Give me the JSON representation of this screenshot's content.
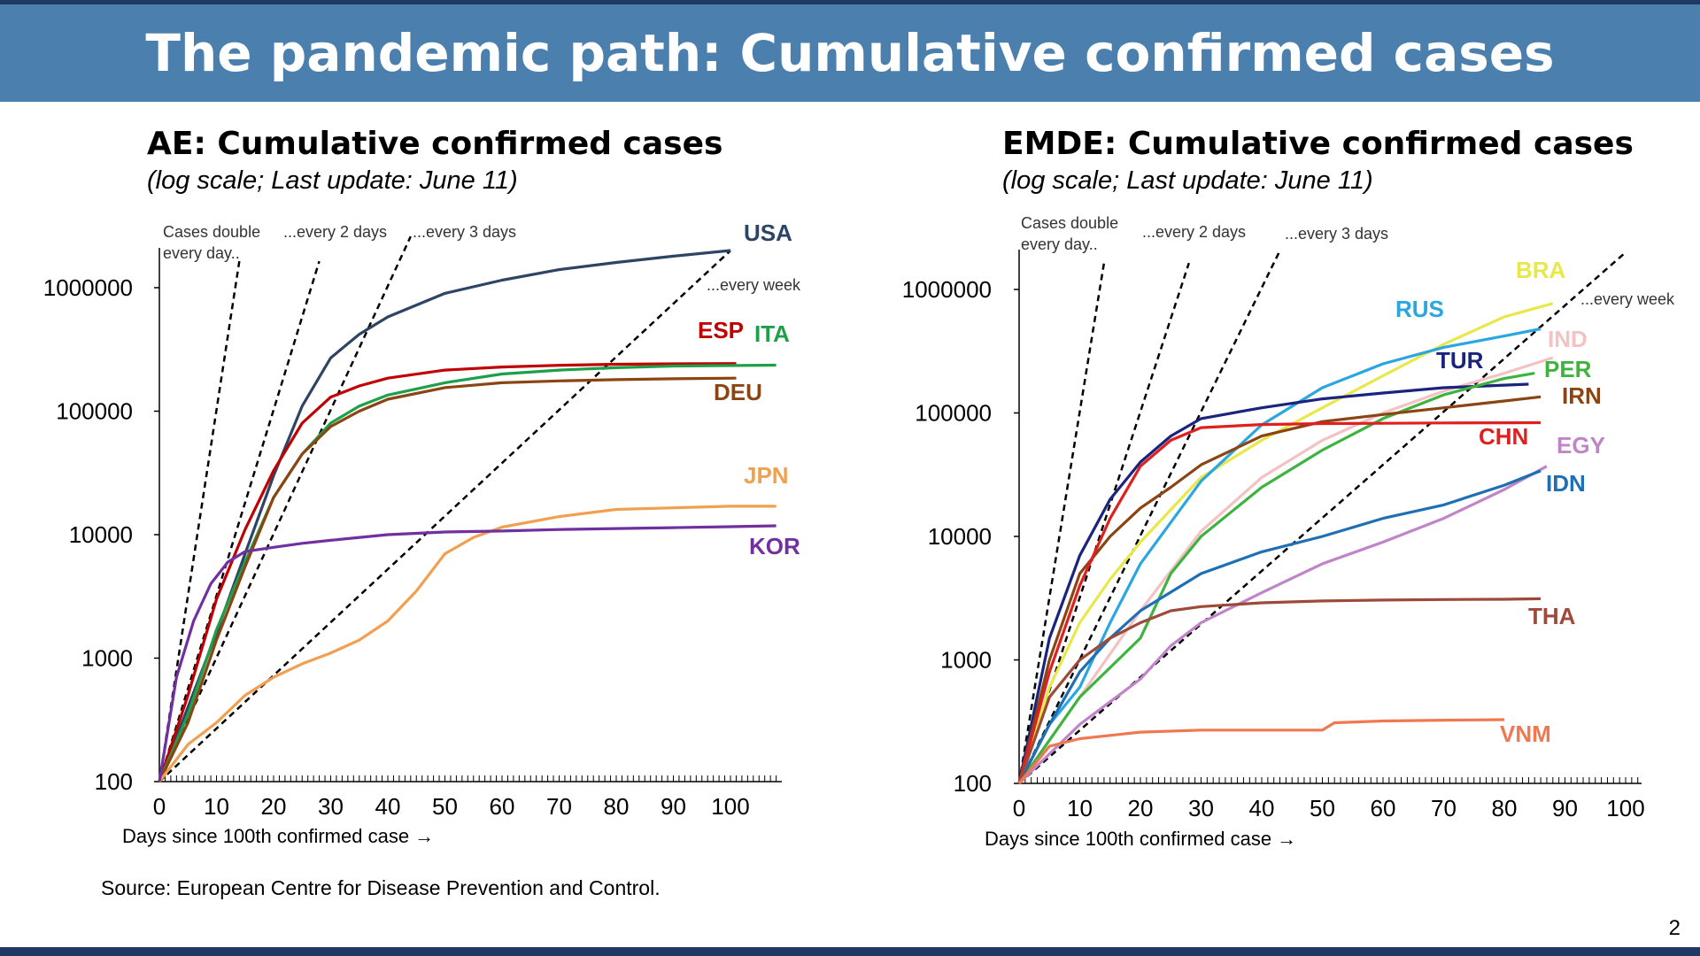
{
  "banner": {
    "title": "The pandemic path: Cumulative confirmed cases"
  },
  "page_number": "2",
  "source": "Source: European Centre for Disease Prevention and Control.",
  "colors": {
    "banner": "#4a7fae",
    "dark_bar": "#1f3864"
  },
  "chart_data": [
    {
      "type": "line",
      "title": "AE: Cumulative confirmed cases",
      "subtitle": "(log scale; Last update: June 11)",
      "xlabel": "Days since 100th confirmed case →",
      "ylabel": "",
      "log_y": true,
      "xlim": [
        0,
        108
      ],
      "ylim": [
        100,
        3000000
      ],
      "xticks": [
        0,
        10,
        20,
        30,
        40,
        50,
        60,
        70,
        80,
        90,
        100
      ],
      "yticks": [
        100,
        1000,
        10000,
        100000,
        1000000
      ],
      "ytick_labels": [
        "100",
        "1000",
        "10000",
        "100000",
        "1000000"
      ],
      "grid": false,
      "reference_lines": [
        {
          "label": "Cases double every day..",
          "days": 1,
          "x": [
            0,
            14
          ]
        },
        {
          "label": "...every 2 days",
          "days": 2,
          "x": [
            0,
            28
          ]
        },
        {
          "label": "...every 3 days",
          "days": 3,
          "x": [
            0,
            44
          ]
        },
        {
          "label": "...every week",
          "days": 7,
          "x": [
            0,
            100
          ]
        }
      ],
      "series": [
        {
          "name": "USA",
          "color": "#2e4464",
          "x": [
            0,
            5,
            10,
            15,
            20,
            25,
            30,
            35,
            40,
            50,
            60,
            70,
            80,
            90,
            100
          ],
          "y": [
            100,
            400,
            1600,
            7000,
            30000,
            110000,
            270000,
            420000,
            580000,
            900000,
            1150000,
            1400000,
            1600000,
            1800000,
            2000000
          ]
        },
        {
          "name": "ESP",
          "color": "#c00000",
          "x": [
            0,
            5,
            10,
            15,
            20,
            25,
            30,
            35,
            40,
            50,
            60,
            70,
            80,
            90,
            101
          ],
          "y": [
            100,
            500,
            3000,
            11000,
            33000,
            80000,
            130000,
            160000,
            185000,
            215000,
            228000,
            235000,
            240000,
            242000,
            243000
          ]
        },
        {
          "name": "ITA",
          "color": "#1ea04a",
          "x": [
            0,
            5,
            10,
            15,
            20,
            25,
            30,
            35,
            40,
            50,
            60,
            70,
            80,
            90,
            108
          ],
          "y": [
            100,
            350,
            1700,
            6000,
            20000,
            45000,
            80000,
            110000,
            135000,
            170000,
            200000,
            215000,
            225000,
            232000,
            236000
          ]
        },
        {
          "name": "DEU",
          "color": "#8b4513",
          "x": [
            0,
            5,
            10,
            15,
            20,
            25,
            30,
            35,
            40,
            50,
            60,
            70,
            80,
            90,
            101
          ],
          "y": [
            100,
            300,
            1400,
            5500,
            20000,
            45000,
            75000,
            100000,
            125000,
            155000,
            170000,
            176000,
            180000,
            183000,
            185000
          ]
        },
        {
          "name": "JPN",
          "color": "#f0a050",
          "x": [
            0,
            5,
            10,
            15,
            20,
            25,
            30,
            35,
            40,
            45,
            50,
            55,
            60,
            70,
            80,
            90,
            100,
            108
          ],
          "y": [
            100,
            200,
            300,
            500,
            700,
            900,
            1100,
            1400,
            2000,
            3500,
            7000,
            9500,
            11500,
            14000,
            16000,
            16500,
            17000,
            17000
          ]
        },
        {
          "name": "KOR",
          "color": "#7030a0",
          "x": [
            0,
            3,
            6,
            9,
            12,
            15,
            20,
            25,
            30,
            40,
            50,
            60,
            70,
            80,
            90,
            100,
            108
          ],
          "y": [
            100,
            700,
            2000,
            4000,
            6000,
            7300,
            7900,
            8500,
            9000,
            10000,
            10500,
            10700,
            11000,
            11200,
            11400,
            11600,
            11800
          ]
        }
      ],
      "series_labels": [
        "USA",
        "ESP",
        "ITA",
        "DEU",
        "JPN",
        "KOR"
      ]
    },
    {
      "type": "line",
      "title": "EMDE: Cumulative confirmed cases",
      "subtitle": "(log scale; Last update: June 11)",
      "xlabel": "Days since 100th confirmed case →",
      "ylabel": "",
      "log_y": true,
      "xlim": [
        0,
        102
      ],
      "ylim": [
        100,
        3000000
      ],
      "xticks": [
        0,
        10,
        20,
        30,
        40,
        50,
        60,
        70,
        80,
        90,
        100
      ],
      "yticks": [
        100,
        1000,
        10000,
        100000,
        1000000
      ],
      "ytick_labels": [
        "100",
        "1000",
        "10000",
        "100000",
        "1000000"
      ],
      "grid": false,
      "reference_lines": [
        {
          "label": "Cases double every day..",
          "days": 1,
          "x": [
            0,
            14
          ]
        },
        {
          "label": "...every 2 days",
          "days": 2,
          "x": [
            0,
            28
          ]
        },
        {
          "label": "...every 3 days",
          "days": 3,
          "x": [
            0,
            43
          ]
        },
        {
          "label": "...every week",
          "days": 7,
          "x": [
            0,
            100
          ]
        }
      ],
      "series": [
        {
          "name": "BRA",
          "color": "#e8e84a",
          "x": [
            0,
            5,
            10,
            15,
            20,
            30,
            40,
            50,
            60,
            70,
            80,
            88
          ],
          "y": [
            100,
            600,
            2000,
            4500,
            9000,
            30000,
            60000,
            110000,
            200000,
            360000,
            600000,
            770000
          ]
        },
        {
          "name": "RUS",
          "color": "#2aa6e0",
          "x": [
            0,
            5,
            10,
            15,
            20,
            30,
            40,
            50,
            60,
            70,
            80,
            86
          ],
          "y": [
            100,
            300,
            600,
            2000,
            6000,
            28000,
            80000,
            160000,
            250000,
            340000,
            420000,
            480000
          ]
        },
        {
          "name": "IND",
          "color": "#f4c2c2",
          "x": [
            0,
            10,
            20,
            30,
            40,
            50,
            60,
            70,
            80,
            88
          ],
          "y": [
            100,
            500,
            2500,
            11000,
            30000,
            60000,
            100000,
            150000,
            210000,
            280000
          ]
        },
        {
          "name": "TUR",
          "color": "#1a237e",
          "x": [
            0,
            5,
            10,
            15,
            20,
            25,
            30,
            40,
            50,
            60,
            70,
            80,
            84
          ],
          "y": [
            100,
            1500,
            7000,
            20000,
            40000,
            65000,
            90000,
            110000,
            130000,
            145000,
            160000,
            168000,
            171000
          ]
        },
        {
          "name": "PER",
          "color": "#3fb33f",
          "x": [
            0,
            10,
            20,
            25,
            30,
            40,
            50,
            60,
            70,
            80,
            85
          ],
          "y": [
            100,
            500,
            1500,
            5000,
            10000,
            25000,
            50000,
            90000,
            140000,
            190000,
            210000
          ]
        },
        {
          "name": "IRN",
          "color": "#8b4513",
          "x": [
            0,
            5,
            10,
            15,
            20,
            25,
            30,
            40,
            50,
            60,
            70,
            80,
            86
          ],
          "y": [
            100,
            1000,
            5000,
            10000,
            17000,
            25000,
            38000,
            65000,
            85000,
            97000,
            110000,
            125000,
            135000
          ]
        },
        {
          "name": "CHN",
          "color": "#e02020",
          "x": [
            0,
            5,
            10,
            15,
            20,
            25,
            30,
            40,
            50,
            60,
            70,
            80,
            86
          ],
          "y": [
            100,
            800,
            4000,
            14000,
            37000,
            60000,
            76000,
            80500,
            82000,
            82500,
            83000,
            83300,
            83400
          ]
        },
        {
          "name": "EGY",
          "color": "#c084c8",
          "x": [
            0,
            10,
            20,
            25,
            30,
            40,
            50,
            60,
            70,
            80,
            87
          ],
          "y": [
            100,
            300,
            700,
            1300,
            2000,
            3500,
            6000,
            9000,
            14000,
            24000,
            37000
          ]
        },
        {
          "name": "IDN",
          "color": "#1f6fb5",
          "x": [
            0,
            5,
            10,
            15,
            20,
            30,
            40,
            50,
            60,
            70,
            80,
            86
          ],
          "y": [
            100,
            300,
            800,
            1500,
            2500,
            5000,
            7500,
            10000,
            14000,
            18000,
            26000,
            34000
          ]
        },
        {
          "name": "THA",
          "color": "#9e4a3a",
          "x": [
            0,
            5,
            10,
            15,
            20,
            25,
            30,
            40,
            50,
            60,
            70,
            80,
            86
          ],
          "y": [
            100,
            500,
            1000,
            1500,
            2000,
            2500,
            2700,
            2900,
            3000,
            3050,
            3080,
            3100,
            3130
          ]
        },
        {
          "name": "VNM",
          "color": "#f07850",
          "x": [
            0,
            5,
            10,
            20,
            30,
            40,
            50,
            52,
            60,
            70,
            80
          ],
          "y": [
            100,
            200,
            230,
            260,
            270,
            270,
            270,
            310,
            320,
            325,
            328
          ]
        }
      ],
      "series_labels": [
        "BRA",
        "RUS",
        "IND",
        "TUR",
        "PER",
        "IRN",
        "CHN",
        "EGY",
        "IDN",
        "THA",
        "VNM"
      ]
    }
  ]
}
